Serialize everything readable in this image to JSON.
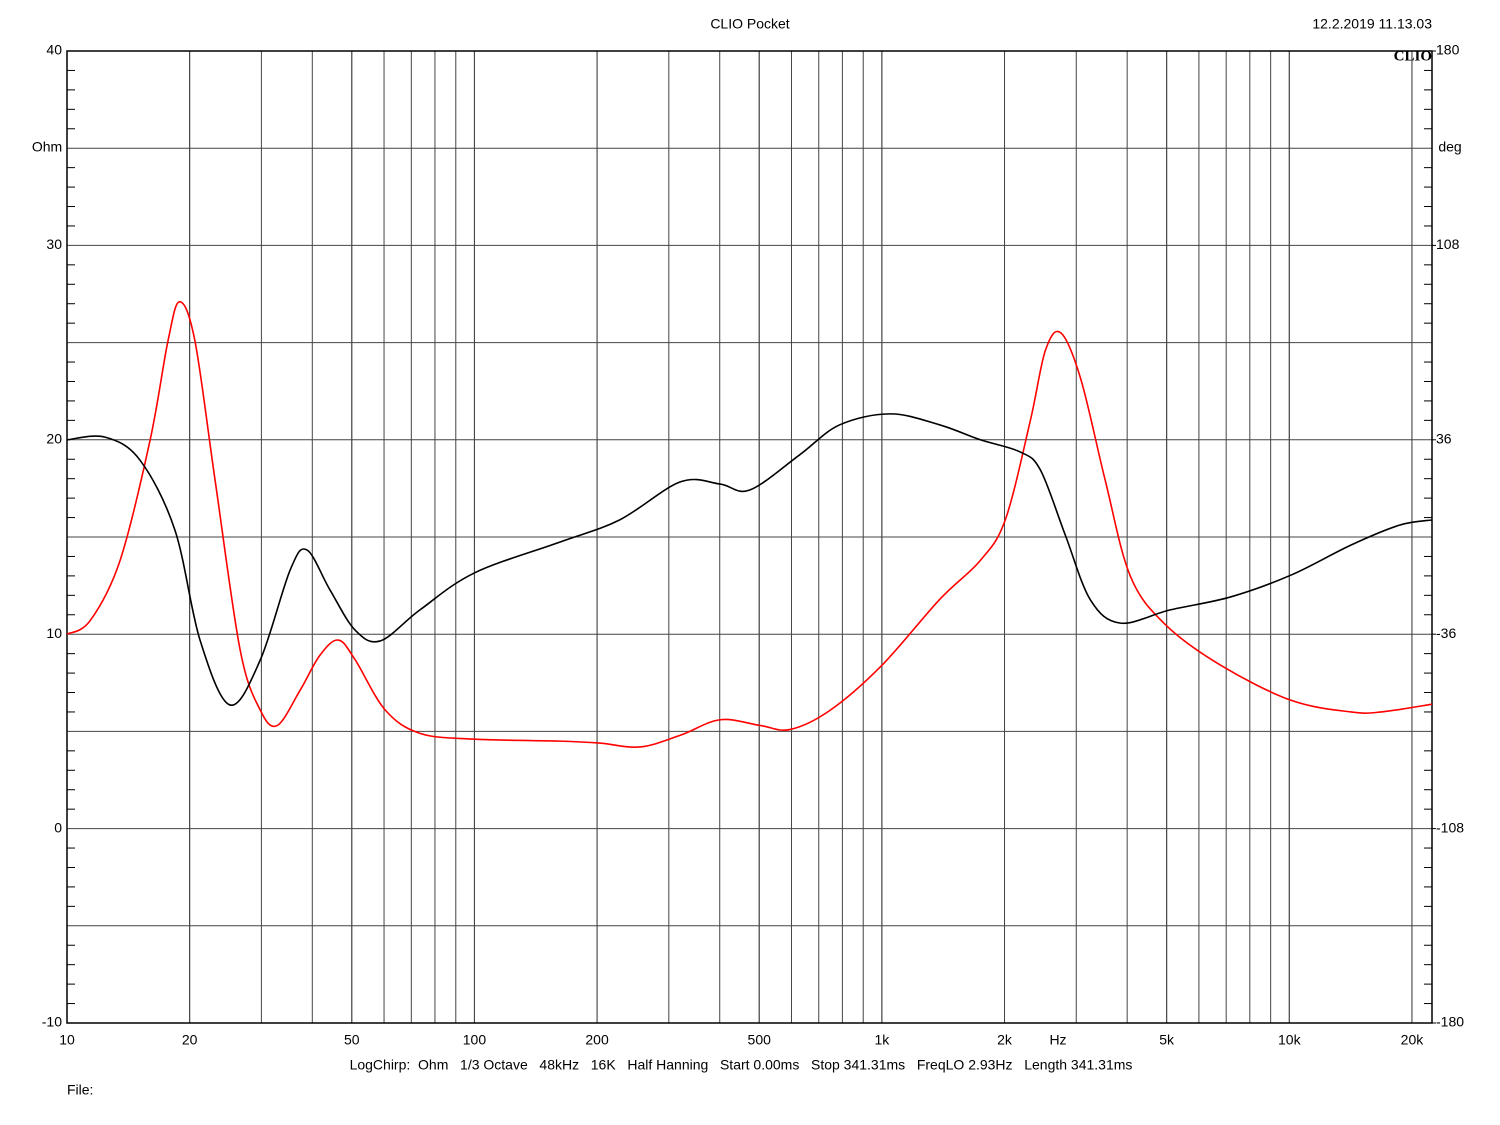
{
  "chart_data": {
    "type": "line",
    "title": "CLIO Pocket",
    "subtitle": "12.2.2019 11.13.03",
    "logo": "CLIO",
    "ylabel": "Ohm",
    "y2label": "deg",
    "xlabel": "Hz",
    "footer": "LogChirp:  Ohm   1/3 Octave   48kHz   16K   Half Hanning   Start 0.00ms   Stop 341.31ms   FreqLO 2.93Hz   Length 341.31ms",
    "file": "File:",
    "xscale": "log",
    "grid": true,
    "xlim": [
      10,
      22400
    ],
    "xticks": [
      10,
      20,
      50,
      100,
      200,
      500,
      {
        "value": 1000,
        "label": "1k"
      },
      {
        "value": 2000,
        "label": "2k"
      },
      {
        "value": 5000,
        "label": "5k"
      },
      {
        "value": 10000,
        "label": "10k"
      },
      {
        "value": 20000,
        "label": "20k"
      }
    ],
    "ylim": [
      -10,
      40
    ],
    "yticks": [
      -10,
      0,
      10,
      20,
      30,
      40
    ],
    "y2lim": [
      -180,
      180
    ],
    "y2ticks": [
      -180,
      -108,
      -36,
      36,
      108,
      180
    ],
    "series": [
      {
        "color": "#ff0000",
        "x": [
          10,
          11.4,
          13.5,
          16.0,
          17.7,
          18.9,
          20.6,
          23.1,
          26.6,
          29.8,
          32.8,
          37.3,
          41.7,
          46.3,
          50.9,
          60.4,
          73.5,
          100,
          162,
          203,
          255,
          320,
          401,
          504,
          596,
          748,
          1000,
          1388,
          1745,
          2010,
          2315,
          2520,
          2750,
          3080,
          3535,
          4070,
          4960,
          6790,
          10100,
          14160,
          16830,
          22400
        ],
        "values": [
          10.0,
          10.7,
          13.8,
          20.0,
          25.1,
          27.1,
          25.1,
          17.9,
          9.2,
          6.1,
          5.3,
          7.1,
          8.9,
          9.7,
          8.7,
          6.1,
          4.9,
          4.6,
          4.5,
          4.4,
          4.2,
          4.8,
          5.6,
          5.3,
          5.1,
          6.1,
          8.4,
          11.8,
          13.8,
          15.9,
          21.0,
          24.6,
          25.5,
          23.1,
          17.9,
          13.0,
          10.5,
          8.4,
          6.6,
          6.0,
          6.0,
          6.4
        ]
      },
      {
        "color": "#000000",
        "axis": "y2",
        "x": [
          10,
          12.4,
          15.1,
          18.4,
          21.2,
          25.1,
          29.8,
          35.3,
          38.8,
          44.2,
          50.9,
          58.7,
          73.5,
          100,
          162,
          227,
          320,
          401,
          474,
          628,
          787,
          1050,
          1388,
          1745,
          2185,
          2450,
          2820,
          3250,
          3850,
          5100,
          7180,
          10100,
          14160,
          18650,
          22400
        ],
        "values": [
          36.0,
          37.0,
          28.5,
          2.6,
          -38.1,
          -62.2,
          -45.6,
          -12.2,
          -4.8,
          -19.6,
          -34.4,
          -38.5,
          -27.0,
          -13.3,
          -1.9,
          6.3,
          20.4,
          19.6,
          17.4,
          30.4,
          41.5,
          45.6,
          41.5,
          36.0,
          31.5,
          24.8,
          0.7,
          -23.3,
          -31.9,
          -27.0,
          -22.2,
          -14.1,
          -3.0,
          4.4,
          6.3
        ]
      }
    ]
  }
}
